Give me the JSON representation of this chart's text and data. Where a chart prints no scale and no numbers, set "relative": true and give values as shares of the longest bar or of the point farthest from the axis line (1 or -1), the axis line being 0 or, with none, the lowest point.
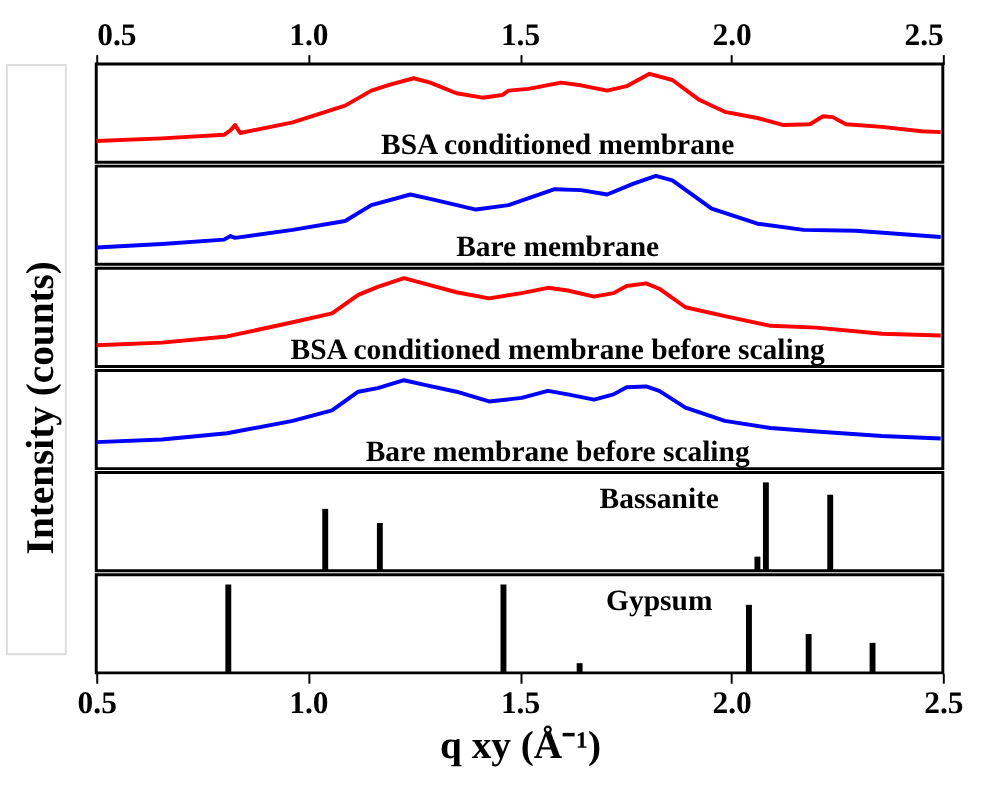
{
  "chart_data": [
    {
      "type": "line",
      "relative": true,
      "ylabel": "Intensity (counts)",
      "xlim": [
        0.5,
        2.5
      ],
      "x2lim": [
        0.5,
        2.5
      ],
      "x2ticks": [
        {
          "value": 0.5,
          "label": "0.5"
        },
        {
          "value": 1.0,
          "label": "1.0"
        },
        {
          "value": 1.5,
          "label": "1.5"
        },
        {
          "value": 2.0,
          "label": "2.0"
        },
        {
          "value": 2.5,
          "label": "2.5"
        }
      ],
      "tick_labels": false,
      "annotations": [
        "BSA conditioned membrane"
      ],
      "series": [
        {
          "color": "#ff0000",
          "x": [
            0.5,
            0.655,
            0.802,
            0.817,
            0.828,
            0.84,
            0.964,
            1.088,
            1.15,
            1.196,
            1.25,
            1.289,
            1.351,
            1.413,
            1.459,
            1.474,
            1.521,
            1.598,
            1.645,
            1.707,
            1.753,
            1.807,
            1.861,
            1.923,
            1.985,
            2.062,
            2.124,
            2.186,
            2.217,
            2.24,
            2.271,
            2.356,
            2.449,
            2.495
          ],
          "values": [
            0.24,
            0.27,
            0.31,
            0.36,
            0.42,
            0.33,
            0.45,
            0.64,
            0.81,
            0.88,
            0.95,
            0.9,
            0.78,
            0.73,
            0.76,
            0.81,
            0.83,
            0.9,
            0.87,
            0.81,
            0.86,
            1.0,
            0.93,
            0.71,
            0.57,
            0.5,
            0.42,
            0.43,
            0.52,
            0.51,
            0.43,
            0.4,
            0.35,
            0.34
          ]
        }
      ]
    },
    {
      "type": "line",
      "relative": true,
      "xlim": [
        0.5,
        2.5
      ],
      "tick_labels": false,
      "annotations": [
        "Bare membrane"
      ],
      "series": [
        {
          "color": "#0000ff",
          "x": [
            0.5,
            0.655,
            0.802,
            0.817,
            0.828,
            0.964,
            1.088,
            1.15,
            1.242,
            1.289,
            1.397,
            1.474,
            1.583,
            1.645,
            1.707,
            1.768,
            1.822,
            1.861,
            1.954,
            2.062,
            2.171,
            2.294,
            2.495
          ],
          "values": [
            0.19,
            0.23,
            0.28,
            0.32,
            0.3,
            0.39,
            0.49,
            0.67,
            0.79,
            0.74,
            0.62,
            0.67,
            0.85,
            0.84,
            0.79,
            0.91,
            1.0,
            0.95,
            0.63,
            0.46,
            0.39,
            0.38,
            0.31
          ]
        }
      ]
    },
    {
      "type": "line",
      "relative": true,
      "xlim": [
        0.5,
        2.5
      ],
      "tick_labels": false,
      "annotations": [
        "BSA conditioned membrane before scaling"
      ],
      "series": [
        {
          "color": "#ff0000",
          "x": [
            0.5,
            0.655,
            0.809,
            0.964,
            1.057,
            1.119,
            1.165,
            1.227,
            1.273,
            1.351,
            1.428,
            1.505,
            1.567,
            1.614,
            1.676,
            1.722,
            1.753,
            1.799,
            1.83,
            1.892,
            1.985,
            2.093,
            2.201,
            2.356,
            2.495
          ],
          "values": [
            0.24,
            0.27,
            0.34,
            0.5,
            0.6,
            0.81,
            0.9,
            1.0,
            0.94,
            0.84,
            0.77,
            0.83,
            0.89,
            0.86,
            0.79,
            0.83,
            0.91,
            0.94,
            0.88,
            0.67,
            0.57,
            0.46,
            0.44,
            0.37,
            0.35
          ]
        }
      ]
    },
    {
      "type": "line",
      "relative": true,
      "xlim": [
        0.5,
        2.5
      ],
      "tick_labels": false,
      "annotations": [
        "Bare membrane before scaling"
      ],
      "series": [
        {
          "color": "#0000ff",
          "x": [
            0.5,
            0.655,
            0.809,
            0.964,
            1.057,
            1.119,
            1.165,
            1.227,
            1.273,
            1.351,
            1.428,
            1.505,
            1.567,
            1.614,
            1.676,
            1.722,
            1.753,
            1.799,
            1.83,
            1.892,
            1.985,
            2.093,
            2.201,
            2.356,
            2.495
          ],
          "values": [
            0.3,
            0.33,
            0.4,
            0.54,
            0.66,
            0.87,
            0.91,
            1.0,
            0.95,
            0.87,
            0.76,
            0.8,
            0.88,
            0.84,
            0.78,
            0.84,
            0.92,
            0.93,
            0.88,
            0.69,
            0.54,
            0.46,
            0.42,
            0.37,
            0.34
          ]
        }
      ]
    },
    {
      "type": "bar",
      "relative": true,
      "xlim": [
        0.5,
        2.5
      ],
      "tick_labels": false,
      "annotations": [
        "Bassanite"
      ],
      "series": [
        {
          "color": "#000000",
          "x": [
            1.041,
            1.17,
            2.062,
            2.082,
            2.234
          ],
          "values": [
            0.7,
            0.54,
            0.16,
            1.0,
            0.86
          ]
        }
      ]
    },
    {
      "type": "bar",
      "relative": true,
      "xlim": [
        0.5,
        2.5
      ],
      "xticks": [
        {
          "value": 0.5,
          "label": "0.5"
        },
        {
          "value": 1.0,
          "label": "1.0"
        },
        {
          "value": 1.5,
          "label": "1.5"
        },
        {
          "value": 2.0,
          "label": "2.0"
        },
        {
          "value": 2.5,
          "label": "2.5"
        }
      ],
      "tick_labels": "x",
      "xlabel": "q xy (Å⁻¹)",
      "annotations": [
        "Gypsum"
      ],
      "series": [
        {
          "color": "#000000",
          "x": [
            0.812,
            1.462,
            1.642,
            2.042,
            2.183,
            2.334
          ],
          "values": [
            1.0,
            1.0,
            0.11,
            0.77,
            0.44,
            0.34
          ]
        }
      ]
    }
  ]
}
